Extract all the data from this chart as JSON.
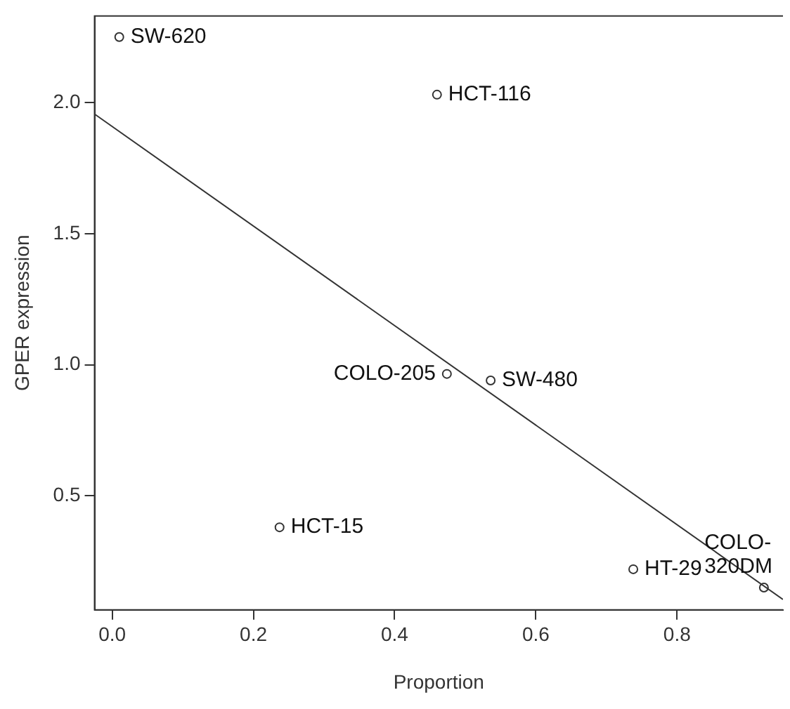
{
  "chart_data": {
    "type": "scatter",
    "xlabel": "Proportion",
    "ylabel": "GPER expression",
    "xlim": [
      -0.025,
      0.95
    ],
    "ylim": [
      0.065,
      2.33
    ],
    "xticks": [
      {
        "value": 0,
        "label": "0.0"
      },
      0.2,
      0.4,
      0.6,
      0.8
    ],
    "yticks": [
      0.5,
      {
        "value": 1,
        "label": "1.0"
      },
      1.5,
      {
        "value": 2,
        "label": "2.0"
      }
    ],
    "grid": false,
    "legend": false,
    "marker": "circle",
    "series": [
      {
        "type": "scatter",
        "color": "#333333",
        "x": [
          0.01,
          0.46,
          0.474,
          0.536,
          0.237,
          0.738,
          0.923
        ],
        "values": [
          2.25,
          2.03,
          0.965,
          0.94,
          0.38,
          0.22,
          0.15
        ]
      },
      {
        "type": "line",
        "color": "#333333",
        "x": [
          -0.025,
          0.95
        ],
        "values": [
          1.956,
          0.105
        ],
        "line_style": "solid",
        "marker": "none"
      }
    ],
    "annotations": [
      {
        "text": "SW-620",
        "x": 0.01,
        "y": 2.25
      },
      {
        "text": "HCT-116",
        "x": 0.46,
        "y": 2.03
      },
      {
        "text": "COLO-205",
        "x": 0.474,
        "y": 0.965
      },
      {
        "text": "SW-480",
        "x": 0.536,
        "y": 0.94
      },
      {
        "text": "HCT-15",
        "x": 0.237,
        "y": 0.38
      },
      {
        "text": "HT-29",
        "x": 0.738,
        "y": 0.22
      },
      {
        "text": "COLO-\n320DM",
        "x": 0.923,
        "y": 0.15
      }
    ]
  }
}
